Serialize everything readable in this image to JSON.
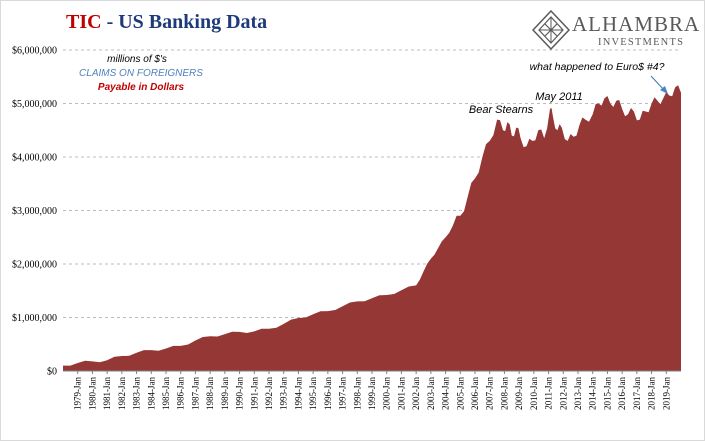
{
  "header": {
    "title_part1": "TIC",
    "title_part2": " - US Banking Data"
  },
  "logo": {
    "name": "ALHAMBRA",
    "sub": "INVESTMENTS"
  },
  "legend": {
    "line1": "millions of $'s",
    "line2": "CLAIMS  ON FOREIGNERS",
    "line3": "Payable  in Dollars"
  },
  "annotations": {
    "bear": "Bear Stearns",
    "may": "May 2011",
    "euro": "what happened to Euro$ #4?"
  },
  "colors": {
    "area": "#953735",
    "title_red": "#c00000",
    "title_blue": "#1f3a7a",
    "legend_blue": "#4f81bd",
    "legend_red": "#c00000",
    "arrow": "#4f81bd"
  },
  "chart_data": {
    "type": "area",
    "title": "TIC - US Banking Data",
    "ylabel": "millions of $'s",
    "ylim": [
      0,
      6000000
    ],
    "y_ticks": [
      "$0",
      "$1,000,000",
      "$2,000,000",
      "$3,000,000",
      "$4,000,000",
      "$5,000,000",
      "$6,000,000"
    ],
    "grid": "horizontal dashed",
    "categories": [
      "1979-Jan",
      "1980-Jan",
      "1981-Jan",
      "1982-Jan",
      "1983-Jan",
      "1984-Jan",
      "1985-Jan",
      "1986-Jan",
      "1987-Jan",
      "1988-Jan",
      "1989-Jan",
      "1990-Jan",
      "1991-Jan",
      "1992-Jan",
      "1993-Jan",
      "1994-Jan",
      "1995-Jan",
      "1996-Jan",
      "1997-Jan",
      "1998-Jan",
      "1999-Jan",
      "2000-Jan",
      "2001-Jan",
      "2002-Jan",
      "2003-Jan",
      "2004-Jan",
      "2005-Jan",
      "2006-Jan",
      "2007-Jan",
      "2008-Jan",
      "2009-Jan",
      "2010-Jan",
      "2011-Jan",
      "2012-Jan",
      "2013-Jan",
      "2014-Jan",
      "2015-Jan",
      "2016-Jan",
      "2017-Jan",
      "2018-Jan",
      "2019-Jan"
    ],
    "series": [
      {
        "name": "CLAIMS ON FOREIGNERS Payable in Dollars",
        "x": [
          1978.0,
          1979.0,
          1980.0,
          1981.0,
          1982.0,
          1983.0,
          1984.0,
          1985.0,
          1986.0,
          1987.0,
          1988.0,
          1989.0,
          1990.0,
          1991.0,
          1992.0,
          1993.0,
          1994.0,
          1995.0,
          1996.0,
          1997.0,
          1998.0,
          1999.0,
          2000.0,
          2001.0,
          2002.0,
          2002.5,
          2003.0,
          2003.5,
          2004.0,
          2004.5,
          2005.0,
          2005.5,
          2006.0,
          2006.5,
          2007.0,
          2007.5,
          2007.9,
          2008.2,
          2008.5,
          2008.8,
          2009.1,
          2009.5,
          2009.9,
          2010.3,
          2010.7,
          2011.1,
          2011.3,
          2011.6,
          2011.9,
          2012.3,
          2012.7,
          2013.1,
          2013.5,
          2014.0,
          2014.4,
          2014.8,
          2015.2,
          2015.6,
          2016.0,
          2016.4,
          2016.8,
          2017.2,
          2017.6,
          2018.0,
          2018.4,
          2018.8,
          2019.2,
          2019.6,
          2020.0
        ],
        "values": [
          100000,
          150000,
          180000,
          200000,
          280000,
          340000,
          390000,
          420000,
          470000,
          570000,
          650000,
          690000,
          730000,
          740000,
          790000,
          880000,
          990000,
          1060000,
          1120000,
          1210000,
          1300000,
          1360000,
          1420000,
          1510000,
          1600000,
          1860000,
          2100000,
          2300000,
          2500000,
          2720000,
          2900000,
          3250000,
          3600000,
          4000000,
          4300000,
          4700000,
          4500000,
          4650000,
          4400000,
          4550000,
          4350000,
          4200000,
          4300000,
          4500000,
          4350000,
          4900000,
          4750000,
          4500000,
          4550000,
          4300000,
          4380000,
          4600000,
          4700000,
          4800000,
          5000000,
          5100000,
          5000000,
          5050000,
          4900000,
          4800000,
          4850000,
          4700000,
          4850000,
          5000000,
          5050000,
          5100000,
          5150000,
          5300000,
          5200000
        ]
      }
    ]
  }
}
